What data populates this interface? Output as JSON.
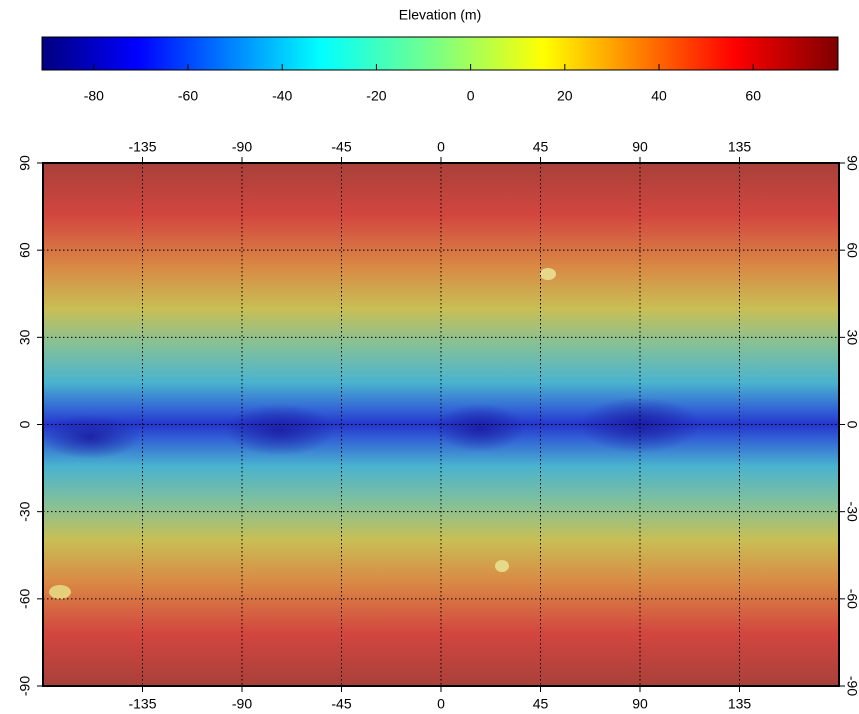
{
  "colorbar": {
    "title": "Elevation (m)",
    "lim": [
      -91,
      78
    ],
    "ticks": [
      -80,
      -60,
      -40,
      -20,
      0,
      20,
      40,
      60
    ]
  },
  "map": {
    "xlim": [
      -180,
      180
    ],
    "ylim": [
      -90,
      90
    ],
    "xticks": [
      -135,
      -90,
      -45,
      0,
      45,
      90,
      135
    ],
    "yticks": [
      -90,
      -60,
      -30,
      0,
      30,
      60,
      90
    ]
  }
}
